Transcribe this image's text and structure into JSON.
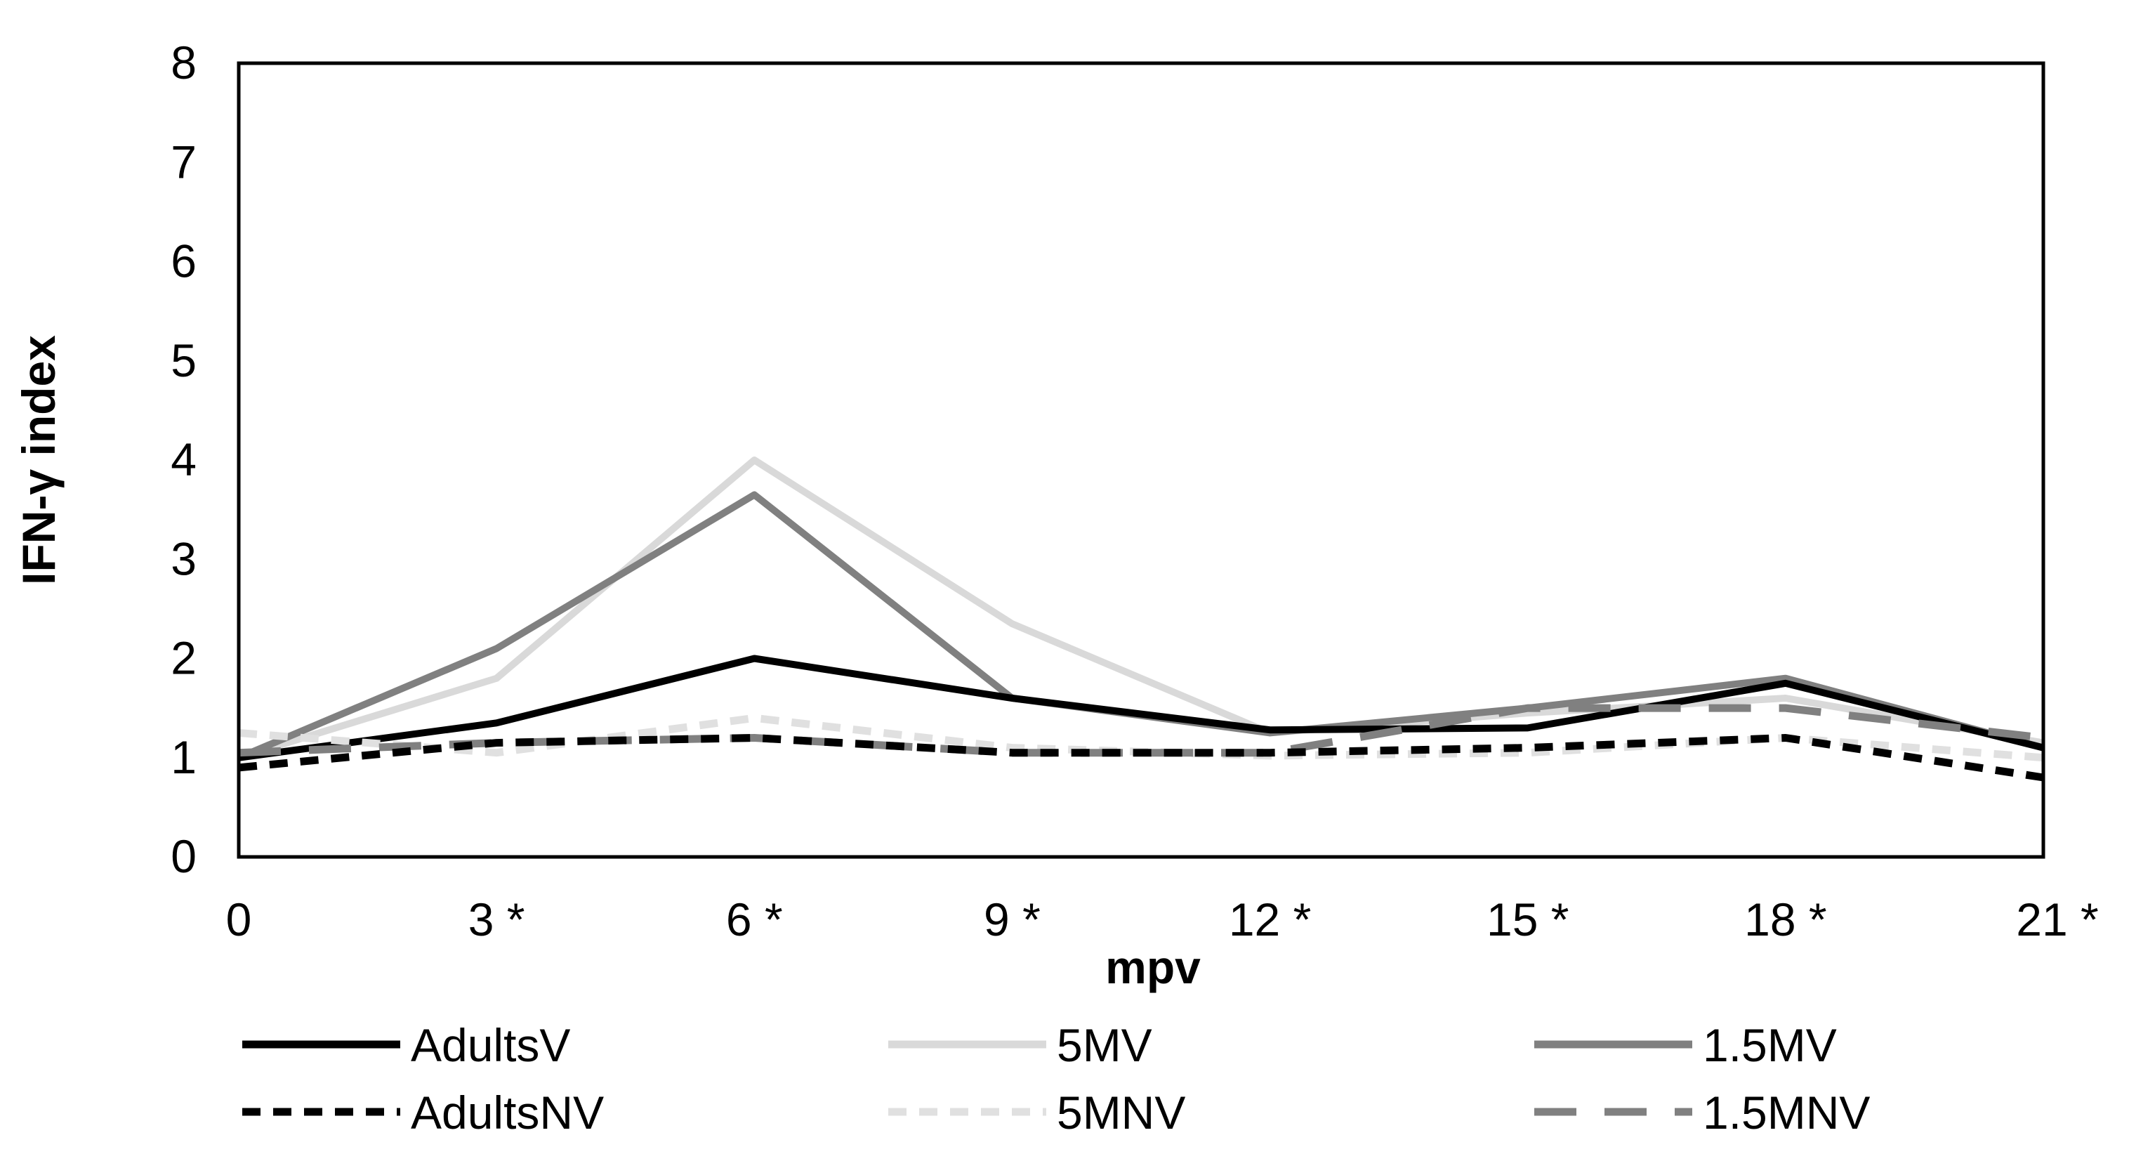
{
  "chart_data": {
    "type": "line",
    "title": "",
    "xlabel": "mpv",
    "ylabel": "IFN-γ index",
    "categories": [
      "0",
      "3 *",
      "6 *",
      "9 *",
      "12 *",
      "15 *",
      "18 *",
      "21 *"
    ],
    "ylim": [
      0,
      8
    ],
    "yticks": [
      "0",
      "1",
      "2",
      "3",
      "4",
      "5",
      "6",
      "7",
      "8"
    ],
    "grid": false,
    "legend_position": "bottom",
    "series": [
      {
        "name": "AdultsV",
        "values": [
          1.0,
          1.35,
          2.0,
          1.6,
          1.28,
          1.3,
          1.75,
          1.1
        ],
        "color": "#000000",
        "dash": "solid"
      },
      {
        "name": "5MV",
        "values": [
          1.0,
          1.8,
          4.0,
          2.35,
          1.25,
          1.45,
          1.6,
          1.15
        ],
        "color": "#d9d9d9",
        "dash": "solid"
      },
      {
        "name": "1.5MV",
        "values": [
          1.0,
          2.1,
          3.65,
          1.6,
          1.25,
          1.5,
          1.8,
          1.1
        ],
        "color": "#808080",
        "dash": "solid"
      },
      {
        "name": "AdultsNV",
        "values": [
          0.9,
          1.15,
          1.2,
          1.05,
          1.05,
          1.1,
          1.2,
          0.8
        ],
        "color": "#000000",
        "dash": "short"
      },
      {
        "name": "5MNV",
        "values": [
          1.25,
          1.05,
          1.4,
          1.1,
          1.02,
          1.05,
          1.2,
          1.0
        ],
        "color": "#e0e0e0",
        "dash": "short"
      },
      {
        "name": "1.5MNV",
        "values": [
          1.05,
          1.15,
          1.2,
          1.05,
          1.05,
          1.5,
          1.5,
          1.2
        ],
        "color": "#808080",
        "dash": "long"
      }
    ]
  }
}
